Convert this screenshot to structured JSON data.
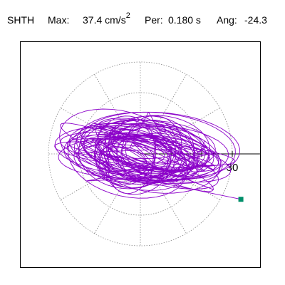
{
  "header": {
    "station": "SHTH",
    "max_label": "Max:",
    "max_value": "37.4 cm/s",
    "max_exponent": "2",
    "per_label": "Per:",
    "per_value": "0.180 s",
    "ang_label": "Ang:",
    "ang_value": "-24.3"
  },
  "chart_data": {
    "type": "scatter",
    "title": "",
    "xlabel": "",
    "ylabel": "",
    "polar_grid": true,
    "radial_ticks": [
      10,
      20,
      30
    ],
    "radial_tick_labels": [
      "30"
    ],
    "series": [
      {
        "values_note": "particle motion trace of horizontal acceleration",
        "color": "#8b00c9",
        "end_marker_color": "#008f6a",
        "end_point": {
          "r": 36.0,
          "ang_deg": -24.3
        }
      }
    ]
  }
}
